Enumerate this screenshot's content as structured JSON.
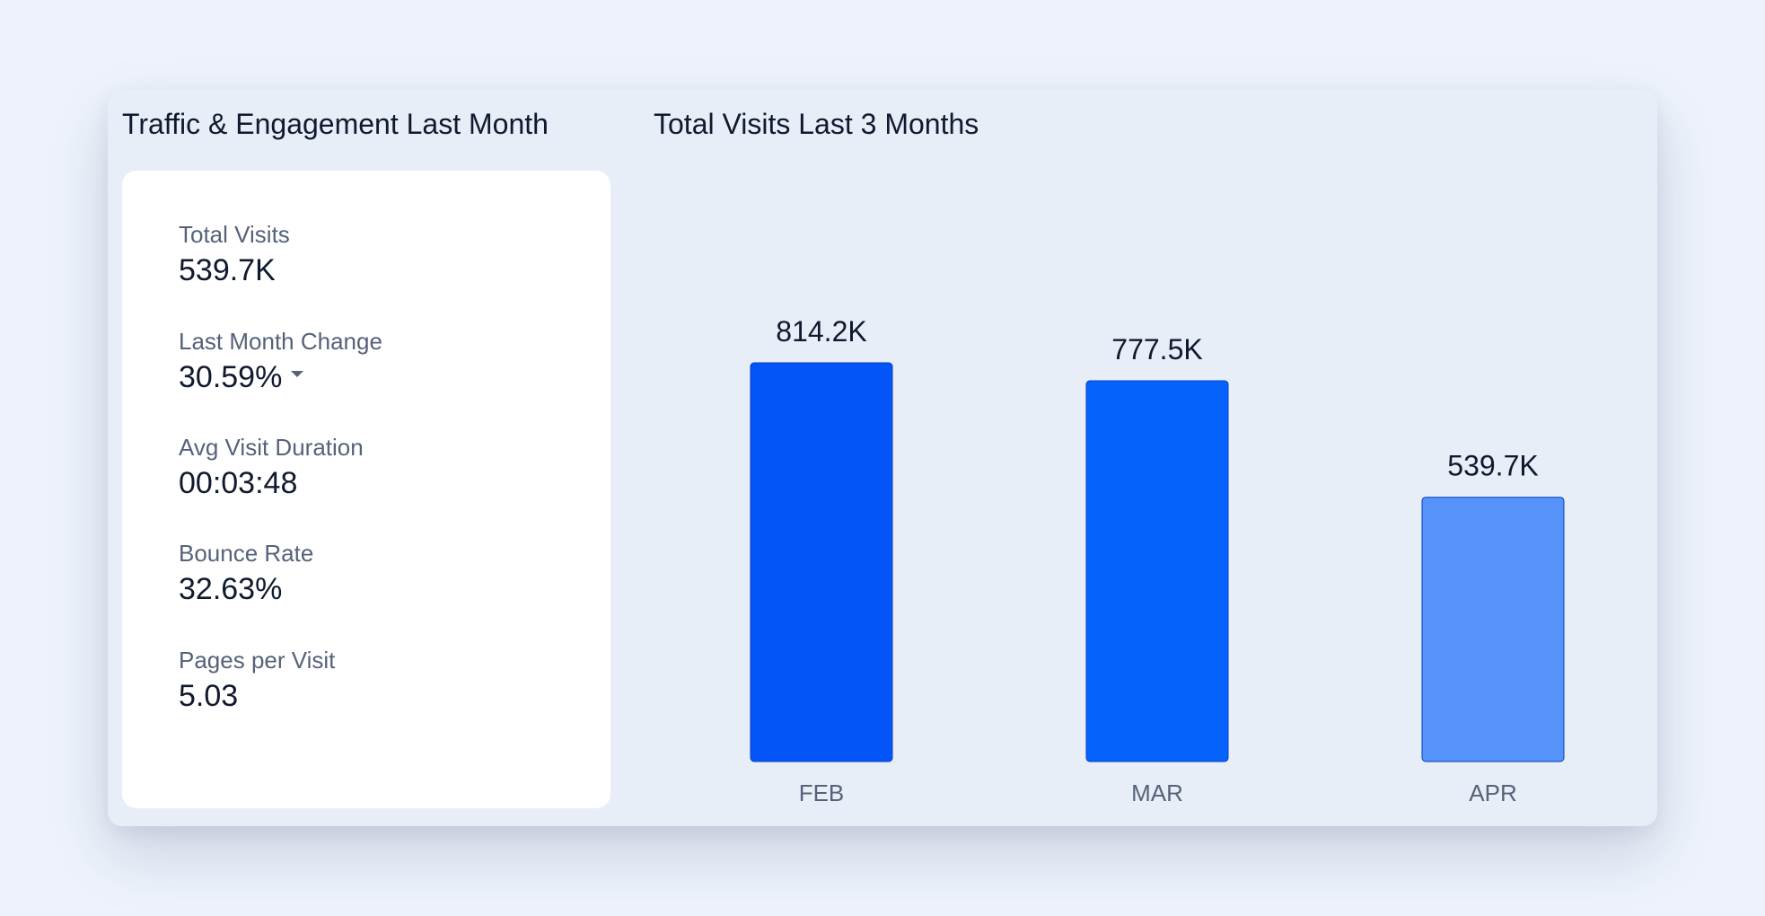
{
  "panel": {
    "left_title": "Traffic & Engagement Last Month",
    "right_title": "Total Visits Last 3 Months"
  },
  "stats": [
    {
      "label": "Total Visits",
      "value": "539.7K"
    },
    {
      "label": "Last Month Change",
      "value": "30.59%",
      "icon": "caret-down-icon"
    },
    {
      "label": "Avg Visit Duration",
      "value": "00:03:48"
    },
    {
      "label": "Bounce Rate",
      "value": "32.63%"
    },
    {
      "label": "Pages per Visit",
      "value": "5.03"
    }
  ],
  "chart_data": {
    "type": "bar",
    "title": "Total Visits Last 3 Months",
    "categories": [
      "FEB",
      "MAR",
      "APR"
    ],
    "values": [
      814.2,
      777.5,
      539.7
    ],
    "value_labels": [
      "814.2K",
      "777.5K",
      "539.7K"
    ],
    "unit": "K",
    "ylim": [
      0,
      814.2
    ],
    "grid": false,
    "colors": [
      "#0355f8",
      "#0563fb",
      "#5592fa"
    ],
    "bar_border_color": "#0a3fc4",
    "label_color": "#0f1a2e",
    "tick_color": "#56627a"
  }
}
